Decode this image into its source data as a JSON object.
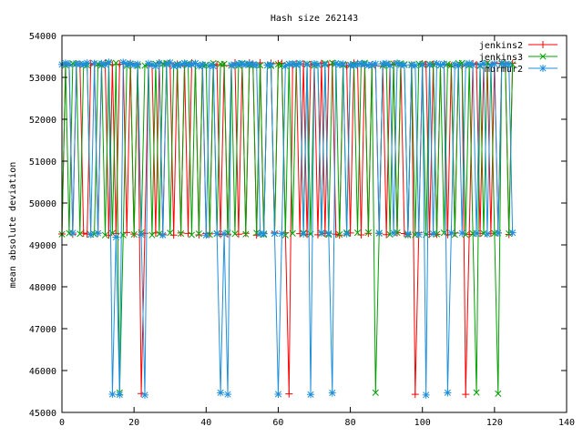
{
  "chart_data": {
    "type": "line",
    "title": "Hash size 262143",
    "xlabel": "",
    "ylabel": "mean absolute deviation",
    "xlim": [
      0,
      140
    ],
    "ylim": [
      45000,
      54000
    ],
    "xticks": [
      "0",
      "20",
      "40",
      "60",
      "80",
      "100",
      "120",
      "140"
    ],
    "yticks": [
      "45000",
      "46000",
      "47000",
      "48000",
      "49000",
      "50000",
      "51000",
      "52000",
      "53000",
      "54000"
    ],
    "grid": false,
    "legend_position": "top-right",
    "series": [
      {
        "name": "jenkins2",
        "color": "#ff0000",
        "marker": "plus",
        "values": [
          49261,
          53299,
          53299,
          49255,
          53325,
          53310,
          49280,
          49258,
          53333,
          53301,
          49278,
          53294,
          53340,
          49234,
          53308,
          49275,
          53319,
          53315,
          49297,
          53336,
          49258,
          53305,
          45450,
          49278,
          53275,
          53296,
          49286,
          53348,
          49259,
          53315,
          53329,
          49233,
          53318,
          49284,
          53277,
          49275,
          53344,
          53328,
          49240,
          53285,
          49271,
          49264,
          53297,
          53303,
          49249,
          53282,
          49256,
          53283,
          53347,
          49255,
          53309,
          49277,
          53349,
          53319,
          49234,
          53347,
          49271,
          53293,
          53339,
          49298,
          53330,
          53336,
          49289,
          45444,
          53298,
          53329,
          49268,
          53321,
          49252,
          53306,
          53300,
          49243,
          53335,
          49272,
          53302,
          53310,
          49255,
          49234,
          53277,
          53276,
          49286,
          53342,
          53332,
          49240,
          53278,
          49276,
          53303,
          53276,
          49275,
          53272,
          49245,
          53299,
          53314,
          49291,
          53286,
          49272,
          49246,
          53299,
          45433,
          49290,
          53326,
          53310,
          49253,
          53313,
          49252,
          53297,
          53304,
          49244,
          53271,
          49285,
          53277,
          53278,
          45432,
          49254,
          53330,
          53305,
          49274,
          53328,
          53315,
          49276,
          53347,
          49289,
          53338,
          53343,
          49250,
          53334
        ]
      },
      {
        "name": "jenkins3",
        "color": "#00a000",
        "marker": "cross",
        "values": [
          49255,
          53291,
          49280,
          53334,
          53331,
          49263,
          53303,
          53289,
          49247,
          49254,
          53325,
          53292,
          49233,
          53341,
          49279,
          53344,
          45472,
          49234,
          53277,
          53329,
          49250,
          53276,
          49293,
          53282,
          53324,
          49234,
          53324,
          49263,
          53327,
          53345,
          49286,
          53274,
          53313,
          49271,
          53339,
          53330,
          49239,
          53339,
          49267,
          53289,
          53303,
          49242,
          53339,
          49266,
          53321,
          53321,
          49285,
          53280,
          49264,
          53283,
          53338,
          49256,
          53300,
          53295,
          49284,
          53289,
          49243,
          53290,
          53275,
          49271,
          53314,
          53296,
          49233,
          53322,
          49275,
          53314,
          53333,
          49284,
          53324,
          49258,
          53284,
          53304,
          49275,
          53335,
          49242,
          53346,
          53336,
          49249,
          53294,
          49293,
          53289,
          53313,
          49290,
          53324,
          53346,
          49294,
          53290,
          45471,
          49276,
          53282,
          53311,
          49249,
          53328,
          49291,
          53334,
          53312,
          49233,
          53308,
          49240,
          53324,
          53320,
          49245,
          53316,
          53310,
          49257,
          53287,
          49290,
          53323,
          53292,
          49242,
          53336,
          53344,
          49242,
          53292,
          49270,
          45474,
          53276,
          49273,
          53344,
          53289,
          49279,
          45447,
          53343,
          53307,
          49271,
          53308
        ]
      },
      {
        "name": "murmur2",
        "color": "#1e8fdc",
        "marker": "star",
        "values": [
          53306,
          53339,
          53316,
          49285,
          53321,
          53317,
          53311,
          53344,
          49248,
          53335,
          49280,
          53331,
          53305,
          53361,
          45434,
          49185,
          45422,
          53359,
          53322,
          53320,
          53297,
          53315,
          49242,
          45416,
          53331,
          53299,
          53269,
          53338,
          49236,
          53311,
          53353,
          53275,
          53291,
          53300,
          53340,
          53297,
          53312,
          53337,
          53274,
          53305,
          49233,
          53285,
          53271,
          49274,
          45471,
          49266,
          45432,
          53293,
          53298,
          53325,
          53320,
          53307,
          53328,
          53306,
          53295,
          49266,
          49267,
          53296,
          53305,
          49270,
          45436,
          49269,
          53274,
          53318,
          53323,
          53301,
          53332,
          49264,
          53309,
          45428,
          53327,
          53301,
          49288,
          53307,
          49274,
          45466,
          53329,
          53307,
          53321,
          49266,
          53300,
          53284,
          53314,
          53321,
          53314,
          53290,
          53298,
          53323,
          49283,
          53321,
          53333,
          53285,
          49283,
          53341,
          53296,
          53297,
          49262,
          53293,
          53286,
          49245,
          53302,
          45416,
          53300,
          49268,
          53329,
          53293,
          53322,
          45471,
          49285,
          53307,
          53280,
          49281,
          53307,
          53333,
          53299,
          49276,
          53293,
          53327,
          49260,
          53289,
          53325,
          49283,
          53324,
          53314,
          53311,
          49290
        ]
      }
    ]
  }
}
